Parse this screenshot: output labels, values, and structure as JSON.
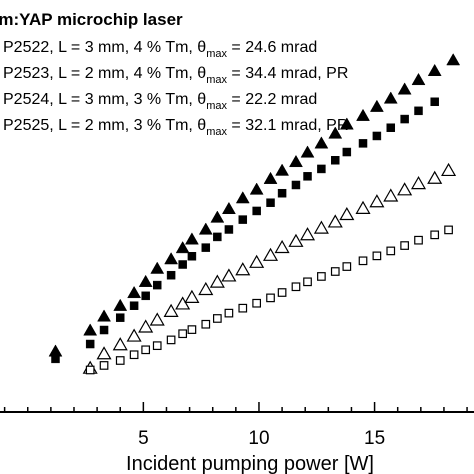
{
  "chart_data": {
    "type": "scatter",
    "title": "Tm:YAP microchip laser",
    "xlabel": "Incident pumping power [W]",
    "ylabel": "",
    "xlim": [
      -1.2,
      19.3
    ],
    "ylim": [
      0,
      1
    ],
    "x_ticks": [
      5,
      10,
      15
    ],
    "grid": false,
    "legend_position": "top-left",
    "series": [
      {
        "name": "P2522, L = 3 mm, 4 % Tm, θmax = 24.6 mrad",
        "marker": "triangle-filled",
        "x": [
          1.2,
          2.7,
          3.3,
          4.0,
          4.6,
          5.1,
          5.6,
          6.2,
          6.7,
          7.1,
          7.7,
          8.2,
          8.7,
          9.3,
          9.9,
          10.5,
          11.0,
          11.6,
          12.1,
          12.7,
          13.3,
          13.8,
          14.5,
          15.1,
          15.7,
          16.3,
          16.9,
          17.6,
          18.4
        ],
        "y": [
          0.147,
          0.198,
          0.232,
          0.258,
          0.289,
          0.316,
          0.348,
          0.371,
          0.398,
          0.419,
          0.443,
          0.472,
          0.493,
          0.519,
          0.54,
          0.566,
          0.586,
          0.607,
          0.63,
          0.652,
          0.676,
          0.698,
          0.719,
          0.741,
          0.761,
          0.783,
          0.806,
          0.828,
          0.854
        ]
      },
      {
        "name": "P2523, L = 2 mm, 4 % Tm, θmax = 34.4 mrad, PR",
        "marker": "square-filled",
        "x": [
          1.2,
          2.7,
          3.3,
          4.0,
          4.6,
          5.1,
          5.6,
          6.2,
          6.7,
          7.1,
          7.7,
          8.2,
          8.7,
          9.3,
          9.9,
          10.5,
          11.0,
          11.6,
          12.1,
          12.7,
          13.3,
          13.8,
          14.5,
          15.1,
          15.7,
          16.3,
          16.9,
          17.6
        ],
        "y": [
          0.129,
          0.165,
          0.199,
          0.229,
          0.258,
          0.282,
          0.308,
          0.332,
          0.358,
          0.378,
          0.399,
          0.425,
          0.443,
          0.467,
          0.488,
          0.508,
          0.531,
          0.551,
          0.572,
          0.59,
          0.611,
          0.631,
          0.652,
          0.67,
          0.69,
          0.711,
          0.731,
          0.753
        ]
      },
      {
        "name": "P2524, L = 3 mm, 3 % Tm, θmax = 22.2 mrad",
        "marker": "triangle-open",
        "x": [
          2.7,
          3.3,
          4.0,
          4.6,
          5.1,
          5.6,
          6.2,
          6.7,
          7.1,
          7.7,
          8.2,
          8.7,
          9.3,
          9.9,
          10.5,
          11.0,
          11.6,
          12.1,
          12.7,
          13.3,
          13.8,
          14.5,
          15.1,
          15.7,
          16.3,
          16.9,
          17.6,
          18.2
        ],
        "y": [
          0.106,
          0.141,
          0.163,
          0.184,
          0.206,
          0.223,
          0.244,
          0.262,
          0.278,
          0.297,
          0.315,
          0.33,
          0.345,
          0.363,
          0.38,
          0.399,
          0.414,
          0.43,
          0.446,
          0.461,
          0.479,
          0.494,
          0.51,
          0.524,
          0.539,
          0.554,
          0.567,
          0.586
        ]
      },
      {
        "name": "P2525, L = 2 mm, 3 % Tm, θmax = 32.1 mrad, PR",
        "marker": "square-open",
        "x": [
          2.7,
          3.3,
          4.0,
          4.6,
          5.1,
          5.6,
          6.2,
          6.7,
          7.1,
          7.7,
          8.2,
          8.7,
          9.3,
          9.9,
          10.5,
          11.0,
          11.6,
          12.1,
          12.7,
          13.3,
          13.8,
          14.5,
          15.1,
          15.7,
          16.3,
          16.9,
          17.6,
          18.2
        ],
        "y": [
          0.102,
          0.113,
          0.125,
          0.139,
          0.151,
          0.161,
          0.175,
          0.19,
          0.2,
          0.213,
          0.227,
          0.24,
          0.252,
          0.264,
          0.277,
          0.29,
          0.304,
          0.316,
          0.329,
          0.341,
          0.353,
          0.367,
          0.379,
          0.391,
          0.404,
          0.417,
          0.43,
          0.442
        ]
      }
    ]
  }
}
